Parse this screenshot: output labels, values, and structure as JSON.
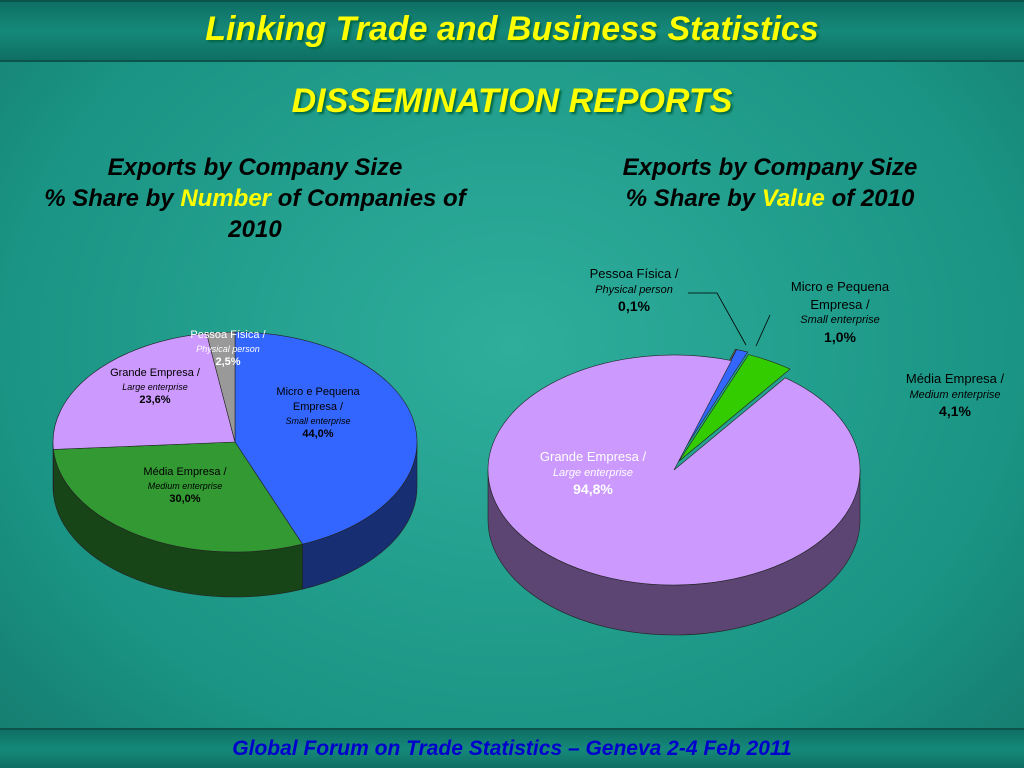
{
  "title": "Linking Trade and Business Statistics",
  "subtitle": "DISSEMINATION REPORTS",
  "footer": "Global Forum on Trade Statistics – Geneva 2-4 Feb 2011",
  "chart_data": [
    {
      "type": "pie",
      "title": "Exports by Company Size",
      "subtitle_parts": [
        "% Share by ",
        "Number",
        " of Companies of 2010"
      ],
      "categories": [
        "Micro e Pequena Empresa /",
        "Média Empresa /",
        "Grande Empresa /",
        "Pessoa Física /"
      ],
      "categories_en": [
        "Small enterprise",
        "Medium enterprise",
        "Large enterprise",
        "Physical person"
      ],
      "values": [
        44.0,
        30.0,
        23.6,
        2.5
      ],
      "value_labels": [
        "44,0%",
        "30,0%",
        "23,6%",
        "2,5%"
      ],
      "colors": [
        "#3366ff",
        "#339933",
        "#cc99ff",
        "#999999"
      ]
    },
    {
      "type": "pie",
      "title": "Exports by Company Size",
      "subtitle_parts": [
        "% Share by ",
        "Value",
        " of 2010"
      ],
      "categories": [
        "Pessoa Física /",
        "Micro e Pequena Empresa /",
        "Média Empresa /",
        "Grande Empresa /"
      ],
      "categories_en": [
        "Physical person",
        "Small enterprise",
        "Medium enterprise",
        "Large enterprise"
      ],
      "values": [
        0.1,
        1.0,
        4.1,
        94.8
      ],
      "value_labels": [
        "0,1%",
        "1,0%",
        "4,1%",
        "94,8%"
      ],
      "colors": [
        "#999999",
        "#3366ff",
        "#33cc00",
        "#cc99ff"
      ]
    }
  ]
}
